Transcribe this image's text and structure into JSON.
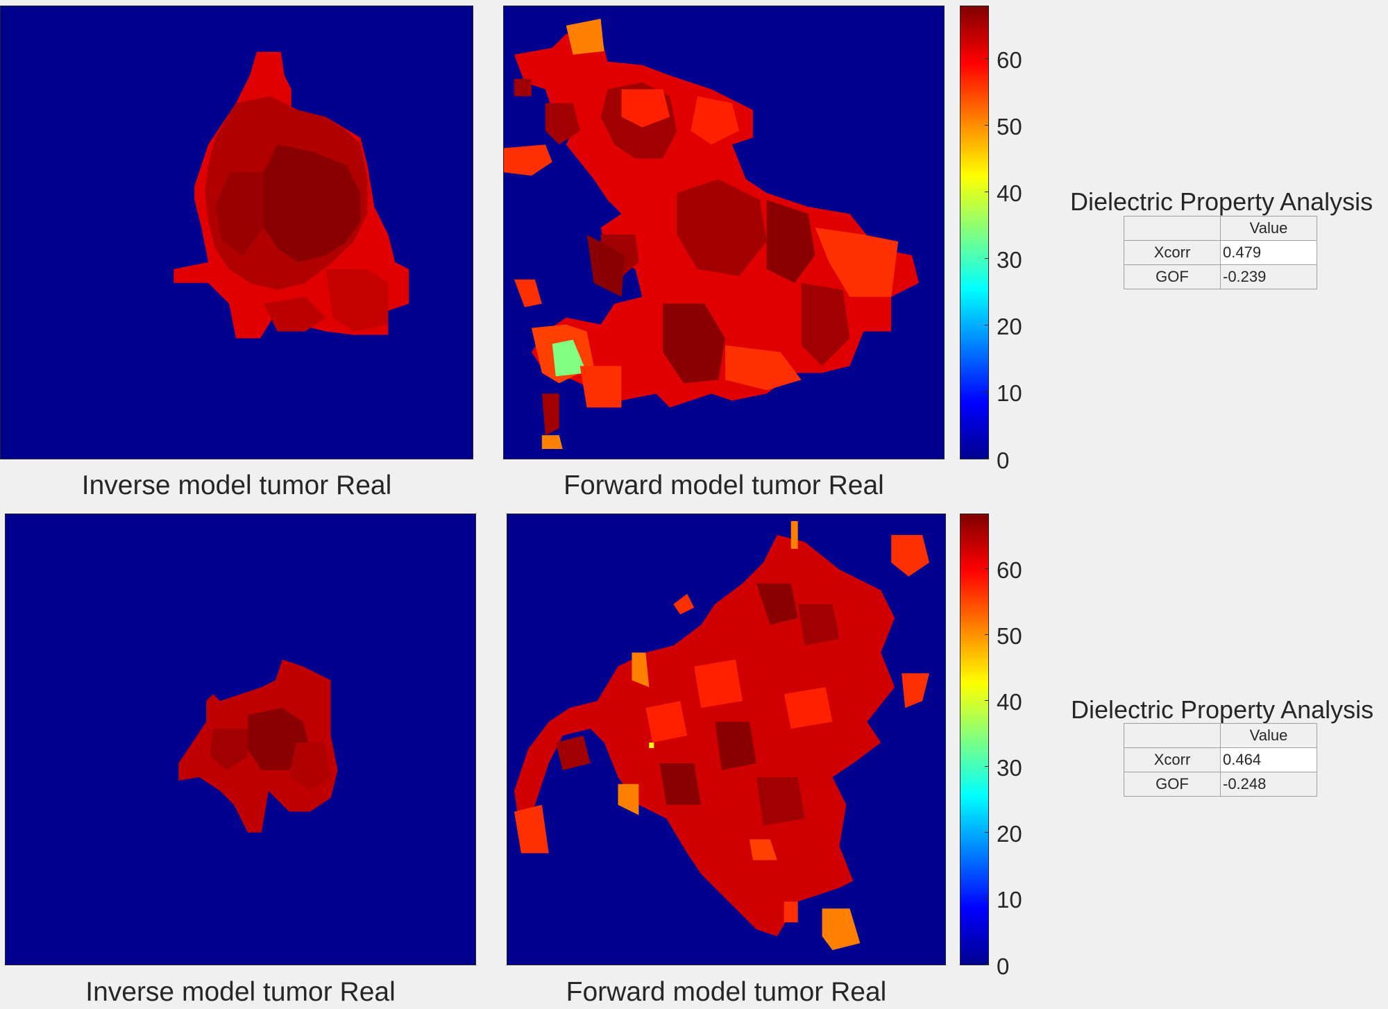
{
  "colors": {
    "background": "#00008f",
    "tumor_dark": "#8a0000",
    "tumor_mid": "#c80000",
    "tumor_red": "#e00000",
    "tumor_bright": "#ff2000",
    "tumor_orange": "#ff8000",
    "tumor_green": "#80ff80",
    "tumor_yellow": "#ffff00"
  },
  "colormap": "jet",
  "rows": [
    {
      "inverse_caption": "Inverse model tumor Real",
      "forward_caption": "Forward model tumor Real",
      "colorbar_ticks": [
        "0",
        "10",
        "20",
        "30",
        "40",
        "50",
        "60"
      ],
      "colorbar_range": [
        0,
        68
      ],
      "table_title": "Dielectric Property Analysis",
      "table": {
        "column_header": "Value",
        "rows": [
          {
            "label": "Xcorr",
            "value": "0.479"
          },
          {
            "label": "GOF",
            "value": "-0.239"
          }
        ]
      }
    },
    {
      "inverse_caption": "Inverse model tumor Real",
      "forward_caption": "Forward model tumor Real",
      "colorbar_ticks": [
        "0",
        "10",
        "20",
        "30",
        "40",
        "50",
        "60"
      ],
      "colorbar_range": [
        0,
        68
      ],
      "table_title": "Dielectric Property Analysis",
      "table": {
        "column_header": "Value",
        "rows": [
          {
            "label": "Xcorr",
            "value": "0.464"
          },
          {
            "label": "GOF",
            "value": "-0.248"
          }
        ]
      }
    }
  ]
}
